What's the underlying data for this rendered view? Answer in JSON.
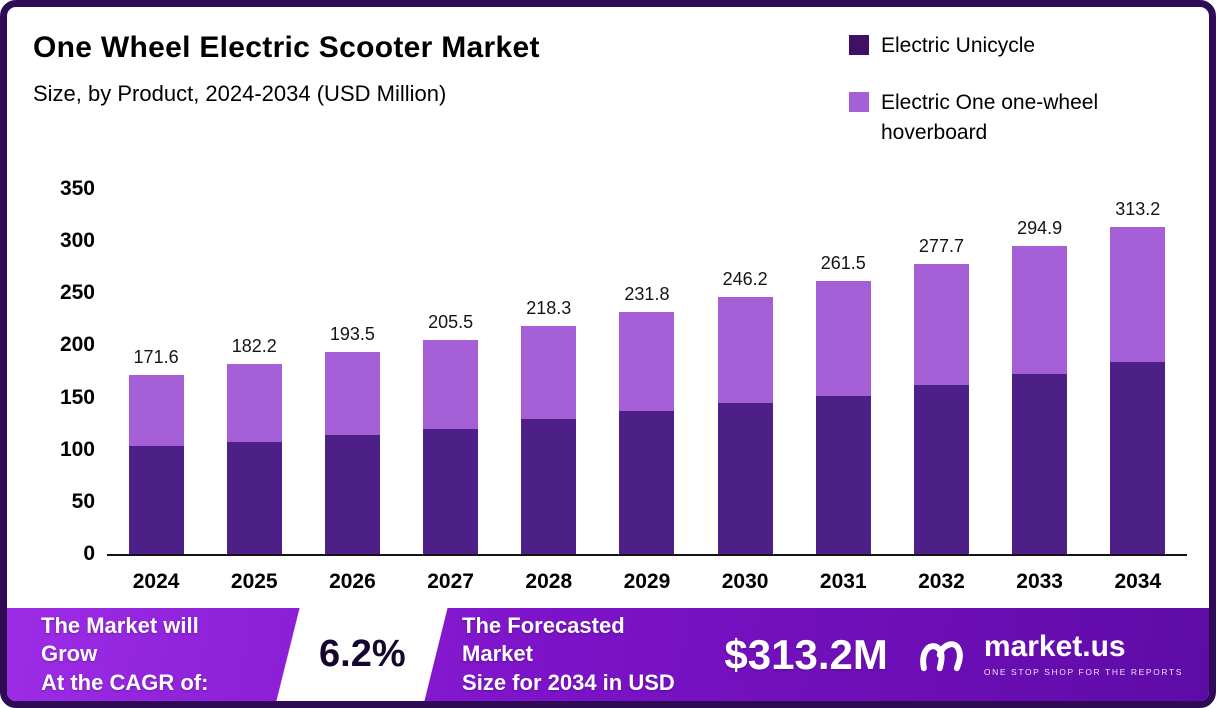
{
  "header": {
    "title": "One Wheel Electric Scooter Market",
    "subtitle": "Size, by Product, 2024-2034 (USD Million)"
  },
  "legend": [
    {
      "label": "Electric Unicycle",
      "color": "#400f66"
    },
    {
      "label": "Electric One one-wheel hoverboard",
      "color": "#a55fd6"
    }
  ],
  "chart_data": {
    "type": "bar",
    "stacked": true,
    "title": "One Wheel Electric Scooter Market",
    "subtitle": "Size, by Product, 2024-2034 (USD Million)",
    "unit": "USD Million",
    "categories": [
      "2024",
      "2025",
      "2026",
      "2027",
      "2028",
      "2029",
      "2030",
      "2031",
      "2032",
      "2033",
      "2034"
    ],
    "series": [
      {
        "name": "Electric Unicycle",
        "color": "#4d2087",
        "values": [
          104,
          107,
          114,
          120,
          129,
          137,
          145,
          152,
          162,
          173,
          184
        ]
      },
      {
        "name": "Electric One one-wheel hoverboard",
        "color": "#a55fd6",
        "values": [
          67.6,
          75.2,
          79.5,
          85.5,
          89.3,
          94.8,
          101.2,
          109.5,
          115.7,
          121.9,
          129.2
        ]
      }
    ],
    "totals": [
      171.6,
      182.2,
      193.5,
      205.5,
      218.3,
      231.8,
      246.2,
      261.5,
      277.7,
      294.9,
      313.2
    ],
    "ylim": [
      0,
      350
    ],
    "yticks": [
      0,
      50,
      100,
      150,
      200,
      250,
      300,
      350
    ],
    "legend_position": "top-right",
    "grid": false
  },
  "footer": {
    "growth_line1": "The Market will Grow",
    "growth_line2": "At the CAGR of:",
    "cagr": "6.2%",
    "forecast_line1": "The Forecasted Market",
    "forecast_line2": "Size for 2034 in USD",
    "forecast_value": "$313.2M",
    "brand": "market.us",
    "tagline": "ONE STOP SHOP FOR THE REPORTS"
  }
}
